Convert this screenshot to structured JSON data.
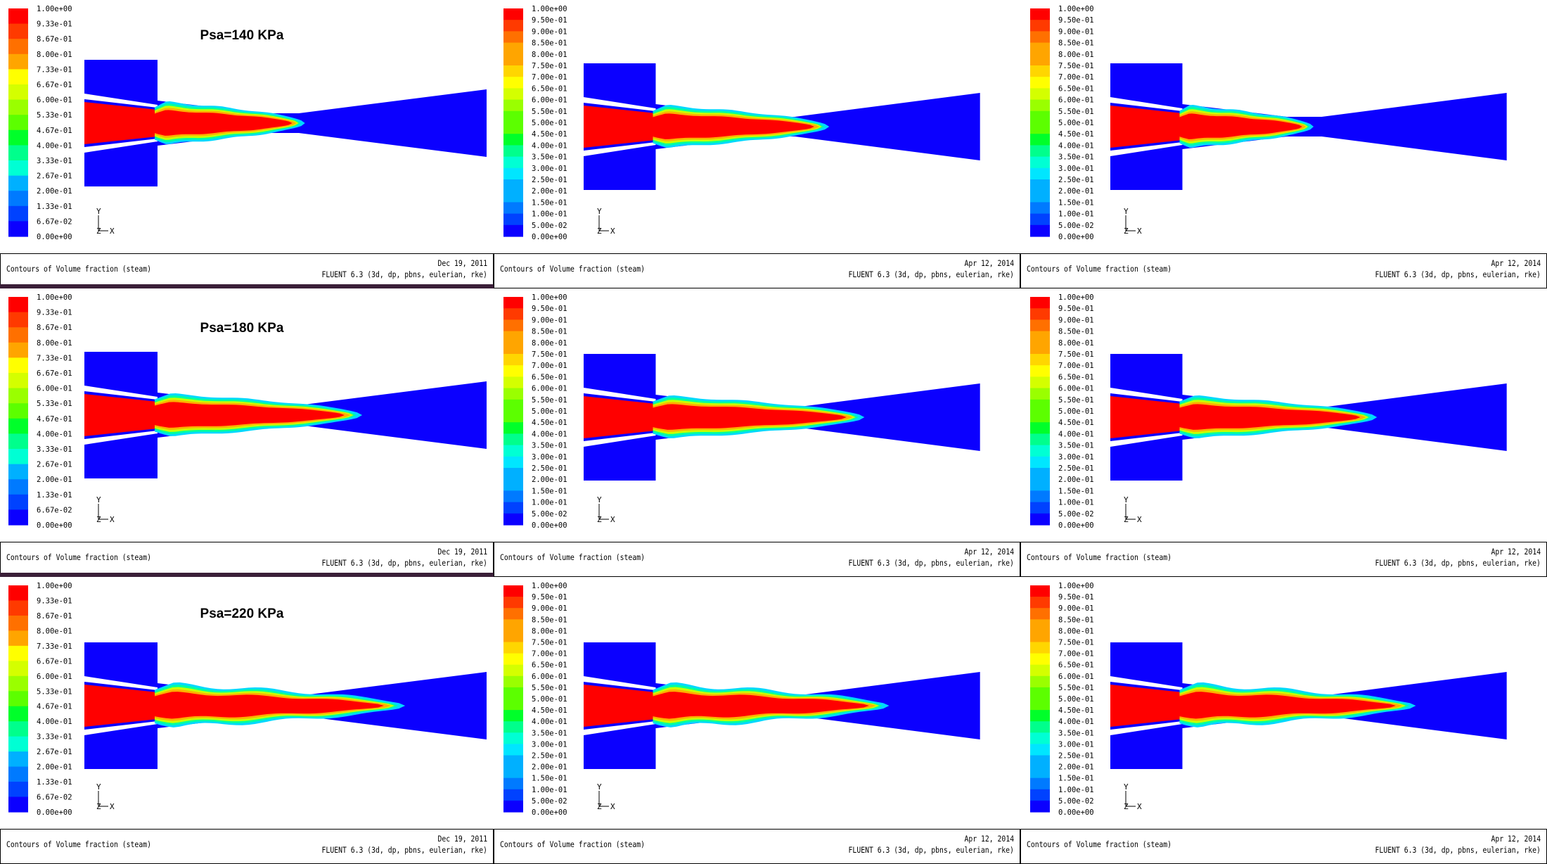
{
  "colormap": [
    "#ff0000",
    "#ff3a00",
    "#ff7000",
    "#ffa500",
    "#ffd600",
    "#ffff00",
    "#d4ff00",
    "#9aff00",
    "#5cff00",
    "#00ff2a",
    "#00ff8c",
    "#00ffd4",
    "#00e6ff",
    "#00b0ff",
    "#007aff",
    "#0042ff",
    "#0b00ff"
  ],
  "legend_set_a": [
    "1.00e+00",
    "9.33e-01",
    "8.67e-01",
    "8.00e-01",
    "7.33e-01",
    "6.67e-01",
    "6.00e-01",
    "5.33e-01",
    "4.67e-01",
    "4.00e-01",
    "3.33e-01",
    "2.67e-01",
    "2.00e-01",
    "1.33e-01",
    "6.67e-02",
    "0.00e+00"
  ],
  "legend_set_b": [
    "1.00e+00",
    "9.50e-01",
    "9.00e-01",
    "8.50e-01",
    "8.00e-01",
    "7.50e-01",
    "7.00e-01",
    "6.50e-01",
    "6.00e-01",
    "5.50e-01",
    "5.00e-01",
    "4.50e-01",
    "4.00e-01",
    "3.50e-01",
    "3.00e-01",
    "2.50e-01",
    "2.00e-01",
    "1.50e-01",
    "1.00e-01",
    "5.00e-02",
    "0.00e+00"
  ],
  "panels": [
    {
      "row": 0,
      "col": 0,
      "label": "Psa=140 KPa",
      "footer_title": "Contours of Volume fraction (steam)",
      "footer_date": "Dec 19, 2011",
      "footer_solver": "FLUENT 6.3 (3d, dp, pbns, eulerian, rke)",
      "legend": "a",
      "plume_fraction": 0.42
    },
    {
      "row": 0,
      "col": 1,
      "label": "",
      "footer_title": "Contours of Volume fraction (steam)",
      "footer_date": "Apr 12, 2014",
      "footer_solver": "FLUENT 6.3 (3d, dp, pbns, eulerian, rke)",
      "legend": "b",
      "plume_fraction": 0.5
    },
    {
      "row": 0,
      "col": 2,
      "label": "",
      "footer_title": "Contours of Volume fraction (steam)",
      "footer_date": "Apr 12, 2014",
      "footer_solver": "FLUENT 6.3 (3d, dp, pbns, eulerian, rke)",
      "legend": "b",
      "plume_fraction": 0.38
    },
    {
      "row": 1,
      "col": 0,
      "label": "Psa=180 KPa",
      "footer_title": "Contours of Volume fraction (steam)",
      "footer_date": "Dec 19, 2011",
      "footer_solver": "FLUENT 6.3 (3d, dp, pbns, eulerian, rke)",
      "legend": "a",
      "plume_fraction": 0.58
    },
    {
      "row": 1,
      "col": 1,
      "label": "",
      "footer_title": "Contours of Volume fraction (steam)",
      "footer_date": "Apr 12, 2014",
      "footer_solver": "FLUENT 6.3 (3d, dp, pbns, eulerian, rke)",
      "legend": "b",
      "plume_fraction": 0.6
    },
    {
      "row": 1,
      "col": 2,
      "label": "",
      "footer_title": "Contours of Volume fraction (steam)",
      "footer_date": "Apr 12, 2014",
      "footer_solver": "FLUENT 6.3 (3d, dp, pbns, eulerian, rke)",
      "legend": "b",
      "plume_fraction": 0.56
    },
    {
      "row": 2,
      "col": 0,
      "label": "Psa=220 KPa",
      "footer_title": "Contours of Volume fraction (steam)",
      "footer_date": "Dec 19, 2011",
      "footer_solver": "FLUENT 6.3 (3d, dp, pbns, eulerian, rke)",
      "legend": "a",
      "plume_fraction": 0.7
    },
    {
      "row": 2,
      "col": 1,
      "label": "",
      "footer_title": "Contours of Volume fraction (steam)",
      "footer_date": "Apr 12, 2014",
      "footer_solver": "FLUENT 6.3 (3d, dp, pbns, eulerian, rke)",
      "legend": "b",
      "plume_fraction": 0.67
    },
    {
      "row": 2,
      "col": 2,
      "label": "",
      "footer_title": "Contours of Volume fraction (steam)",
      "footer_date": "Apr 12, 2014",
      "footer_solver": "FLUENT 6.3 (3d, dp, pbns, eulerian, rke)",
      "legend": "b",
      "plume_fraction": 0.67
    }
  ],
  "axes": {
    "x": "X",
    "y": "Y",
    "z": "Z"
  },
  "colors": {
    "domain": "#0b00ff",
    "plume_core": "#ff0000",
    "separator": "#3a1f38"
  }
}
